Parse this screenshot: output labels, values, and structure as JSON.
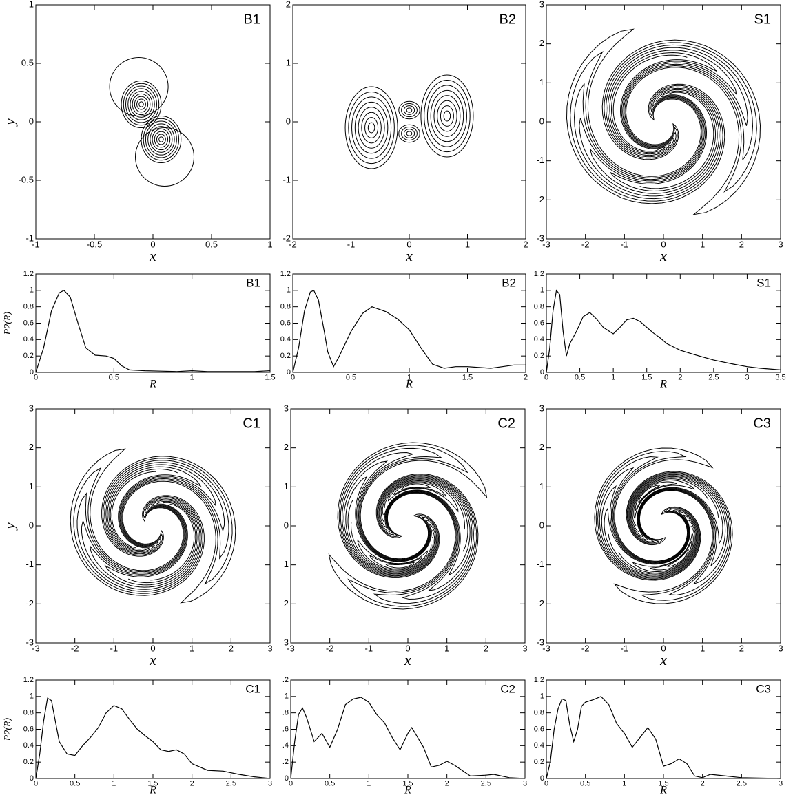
{
  "chart_data": [
    {
      "type": "contour",
      "title": "B1",
      "xlabel": "x",
      "ylabel": "y",
      "xlim": [
        -1,
        1
      ],
      "ylim": [
        -1,
        1
      ],
      "xticks": [
        -1,
        -0.5,
        0,
        0.5,
        1
      ],
      "yticks": [
        -1,
        -0.5,
        0,
        0.5,
        1
      ]
    },
    {
      "type": "contour",
      "title": "B2",
      "xlabel": "x",
      "xlim": [
        -2,
        2
      ],
      "ylim": [
        -2,
        2
      ],
      "xticks": [
        -2,
        -1,
        0,
        1,
        2
      ],
      "yticks": [
        -2,
        -1,
        0,
        1,
        2
      ]
    },
    {
      "type": "contour",
      "title": "S1",
      "xlabel": "x",
      "xlim": [
        -3,
        3
      ],
      "ylim": [
        -3,
        3
      ],
      "xticks": [
        -3,
        -2,
        -1,
        0,
        1,
        2,
        3
      ],
      "yticks": [
        -3,
        -2,
        -1,
        0,
        1,
        2,
        3
      ]
    },
    {
      "type": "line",
      "title": "B1",
      "xlabel": "R",
      "ylabel": "P2(R)",
      "xlim": [
        0,
        1.5
      ],
      "ylim": [
        0,
        1.2
      ],
      "xticks": [
        0,
        0.5,
        1,
        1.5
      ],
      "yticks": [
        0,
        0.2,
        0.4,
        0.6,
        0.8,
        1,
        1.2
      ],
      "x": [
        0,
        0.05,
        0.1,
        0.15,
        0.18,
        0.22,
        0.27,
        0.32,
        0.38,
        0.45,
        0.5,
        0.55,
        0.6,
        0.7,
        0.8,
        0.9,
        1.0,
        1.1,
        1.2,
        1.3,
        1.4,
        1.5
      ],
      "values": [
        0,
        0.3,
        0.75,
        0.97,
        1.0,
        0.92,
        0.6,
        0.3,
        0.21,
        0.2,
        0.17,
        0.08,
        0.03,
        0.02,
        0.015,
        0.01,
        0.02,
        0.01,
        0.01,
        0.01,
        0.01,
        0.02
      ]
    },
    {
      "type": "line",
      "title": "B2",
      "xlabel": "R",
      "xlim": [
        0,
        2
      ],
      "ylim": [
        0,
        1.2
      ],
      "xticks": [
        0,
        0.5,
        1,
        1.5,
        2
      ],
      "yticks": [
        0,
        0.2,
        0.4,
        0.6,
        0.8,
        1,
        1.2
      ],
      "x": [
        0,
        0.05,
        0.1,
        0.15,
        0.18,
        0.22,
        0.27,
        0.3,
        0.35,
        0.4,
        0.5,
        0.6,
        0.68,
        0.8,
        0.9,
        1.0,
        1.1,
        1.2,
        1.3,
        1.4,
        1.5,
        1.6,
        1.7,
        1.8,
        1.9,
        2.0
      ],
      "values": [
        0,
        0.3,
        0.75,
        0.98,
        1.0,
        0.88,
        0.5,
        0.25,
        0.07,
        0.2,
        0.5,
        0.72,
        0.8,
        0.74,
        0.65,
        0.52,
        0.3,
        0.1,
        0.05,
        0.07,
        0.07,
        0.06,
        0.05,
        0.07,
        0.09,
        0.09
      ]
    },
    {
      "type": "line",
      "title": "S1",
      "xlabel": "R",
      "xlim": [
        0,
        3.5
      ],
      "ylim": [
        0,
        1.2
      ],
      "xticks": [
        0,
        0.5,
        1,
        1.5,
        2,
        2.5,
        3,
        3.5
      ],
      "yticks": [
        0,
        0.2,
        0.4,
        0.6,
        0.8,
        1,
        1.2
      ],
      "x": [
        0,
        0.05,
        0.1,
        0.15,
        0.2,
        0.25,
        0.3,
        0.35,
        0.45,
        0.55,
        0.65,
        0.75,
        0.85,
        1.0,
        1.1,
        1.2,
        1.3,
        1.4,
        1.5,
        1.6,
        1.7,
        1.8,
        2.0,
        2.2,
        2.5,
        2.8,
        3.0,
        3.2,
        3.5
      ],
      "values": [
        0,
        0.3,
        0.75,
        1.0,
        0.95,
        0.5,
        0.2,
        0.35,
        0.5,
        0.68,
        0.73,
        0.65,
        0.55,
        0.47,
        0.55,
        0.64,
        0.66,
        0.62,
        0.55,
        0.48,
        0.42,
        0.35,
        0.27,
        0.22,
        0.15,
        0.1,
        0.07,
        0.05,
        0.03
      ]
    },
    {
      "type": "contour",
      "title": "C1",
      "xlabel": "x",
      "ylabel": "y",
      "xlim": [
        -3,
        3
      ],
      "ylim": [
        -3,
        3
      ],
      "xticks": [
        -3,
        -2,
        -1,
        0,
        1,
        2,
        3
      ],
      "yticks": [
        -3,
        -2,
        -1,
        0,
        1,
        2,
        3
      ]
    },
    {
      "type": "contour",
      "title": "C2",
      "xlabel": "x",
      "xlim": [
        -3,
        3
      ],
      "ylim": [
        -3,
        3
      ],
      "xticks": [
        -3,
        -2,
        -1,
        0,
        1,
        2,
        3
      ],
      "yticks": [
        {
          "value": -3,
          "label": "3"
        },
        {
          "value": -2,
          "label": "2"
        },
        {
          "value": -1,
          "label": "1"
        },
        0,
        1,
        2,
        3
      ]
    },
    {
      "type": "contour",
      "title": "C3",
      "xlabel": "x",
      "xlim": [
        -3,
        3
      ],
      "ylim": [
        -3,
        3
      ],
      "xticks": [
        -3,
        -2,
        -1,
        0,
        1,
        2,
        3
      ],
      "yticks": [
        -3,
        -2,
        -1,
        0,
        1,
        2,
        3
      ]
    },
    {
      "type": "line",
      "title": "C1",
      "xlabel": "R",
      "ylabel": "P2(R)",
      "xlim": [
        0,
        3
      ],
      "ylim": [
        0,
        1.2
      ],
      "xticks": [
        0,
        0.5,
        1,
        1.5,
        2,
        2.5,
        3
      ],
      "yticks": [
        0,
        0.2,
        0.4,
        0.6,
        0.8,
        1,
        1.2
      ],
      "x": [
        0,
        0.05,
        0.1,
        0.15,
        0.2,
        0.25,
        0.3,
        0.4,
        0.5,
        0.6,
        0.7,
        0.8,
        0.9,
        1.0,
        1.1,
        1.2,
        1.3,
        1.4,
        1.5,
        1.6,
        1.7,
        1.8,
        1.9,
        2.0,
        2.2,
        2.4,
        2.6,
        2.8,
        3.0
      ],
      "values": [
        0,
        0.3,
        0.7,
        0.98,
        0.95,
        0.7,
        0.45,
        0.3,
        0.28,
        0.4,
        0.5,
        0.62,
        0.8,
        0.89,
        0.85,
        0.72,
        0.6,
        0.52,
        0.45,
        0.35,
        0.33,
        0.35,
        0.3,
        0.18,
        0.1,
        0.09,
        0.05,
        0.02,
        0
      ]
    },
    {
      "type": "line",
      "title": "C2",
      "xlabel": "R",
      "xlim": [
        0,
        3
      ],
      "ylim": [
        0,
        1.2
      ],
      "xticks": [
        0,
        0.5,
        1,
        1.5,
        2,
        2.5,
        3
      ],
      "yticks": [
        0,
        {
          "value": 0.2,
          "label": ".2"
        },
        {
          "value": 0.4,
          "label": ".4"
        },
        {
          "value": 0.6,
          "label": ".6"
        },
        {
          "value": 0.8,
          "label": ".8"
        },
        1,
        {
          "value": 1.2,
          "label": ".2"
        }
      ],
      "x": [
        0,
        0.05,
        0.1,
        0.15,
        0.2,
        0.3,
        0.4,
        0.5,
        0.6,
        0.7,
        0.8,
        0.9,
        1.0,
        1.1,
        1.2,
        1.3,
        1.4,
        1.5,
        1.55,
        1.7,
        1.8,
        1.9,
        2.0,
        2.1,
        2.3,
        2.5,
        2.6,
        2.8,
        3.0
      ],
      "values": [
        0,
        0.45,
        0.78,
        0.86,
        0.75,
        0.45,
        0.55,
        0.38,
        0.6,
        0.9,
        0.97,
        0.99,
        0.93,
        0.78,
        0.68,
        0.5,
        0.35,
        0.55,
        0.62,
        0.38,
        0.14,
        0.16,
        0.21,
        0.16,
        0.03,
        0.04,
        0.05,
        0.01,
        0
      ]
    },
    {
      "type": "line",
      "title": "C3",
      "xlabel": "R",
      "xlim": [
        0,
        3
      ],
      "ylim": [
        0,
        1.2
      ],
      "xticks": [
        0,
        0.5,
        1,
        1.5,
        2,
        2.5,
        3
      ],
      "yticks": [
        0,
        0.2,
        0.4,
        0.6,
        0.8,
        1,
        1.2
      ],
      "x": [
        0,
        0.05,
        0.1,
        0.15,
        0.2,
        0.25,
        0.3,
        0.35,
        0.4,
        0.45,
        0.5,
        0.6,
        0.7,
        0.8,
        0.9,
        1.0,
        1.1,
        1.2,
        1.3,
        1.4,
        1.5,
        1.6,
        1.7,
        1.8,
        1.9,
        2.0,
        2.1,
        2.3,
        2.5,
        3.0
      ],
      "values": [
        0,
        0.2,
        0.6,
        0.85,
        0.97,
        0.95,
        0.65,
        0.45,
        0.6,
        0.88,
        0.93,
        0.96,
        1.0,
        0.9,
        0.67,
        0.55,
        0.38,
        0.5,
        0.62,
        0.48,
        0.15,
        0.18,
        0.24,
        0.18,
        0.03,
        0.01,
        0.05,
        0.03,
        0.01,
        0
      ]
    }
  ]
}
